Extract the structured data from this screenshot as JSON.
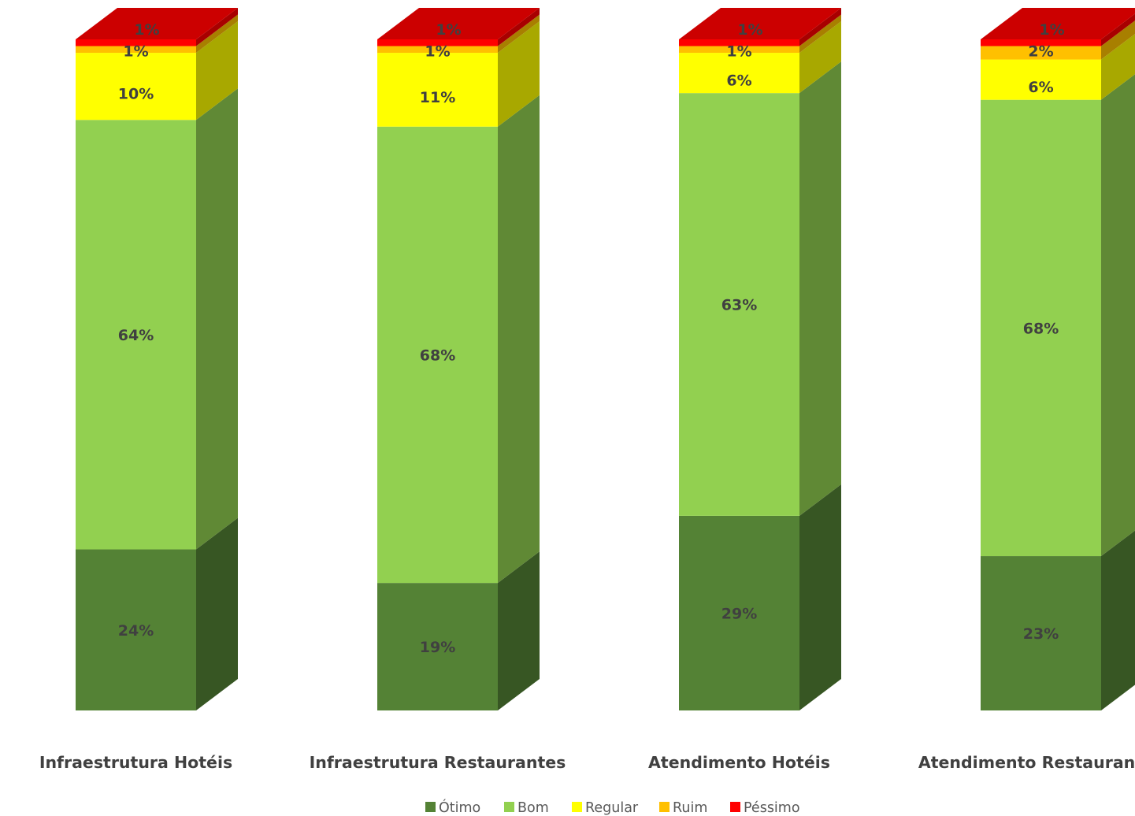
{
  "chart_data": {
    "type": "bar",
    "stacked": true,
    "three_d": true,
    "percent_stacked": true,
    "categories": [
      "Infraestrutura Hotéis",
      "Infraestrutura Restaurantes",
      "Atendimento Hotéis",
      "Atendimento Restaurantes"
    ],
    "series": [
      {
        "name": "Ótimo",
        "color": "#548235",
        "values": [
          24,
          19,
          29,
          23
        ],
        "labels": [
          "24%",
          "19%",
          "29%",
          "23%"
        ]
      },
      {
        "name": "Bom",
        "color": "#92d050",
        "values": [
          64,
          68,
          63,
          68
        ],
        "labels": [
          "64%",
          "68%",
          "63%",
          "68%"
        ]
      },
      {
        "name": "Regular",
        "color": "#ffff00",
        "values": [
          10,
          11,
          6,
          6
        ],
        "labels": [
          "10%",
          "11%",
          "6%",
          "6%"
        ]
      },
      {
        "name": "Ruim",
        "color": "#ffc000",
        "values": [
          1,
          1,
          1,
          2
        ],
        "labels": [
          "1%",
          "1%",
          "1%",
          "2%"
        ]
      },
      {
        "name": "Péssimo",
        "color": "#ff0000",
        "values": [
          1,
          1,
          1,
          1
        ],
        "labels": [
          "1%",
          "1%",
          "1%",
          "1%"
        ]
      }
    ],
    "ylim": [
      0,
      100
    ],
    "grid": false,
    "legend_position": "bottom",
    "title": "",
    "xlabel": "",
    "ylabel": ""
  }
}
